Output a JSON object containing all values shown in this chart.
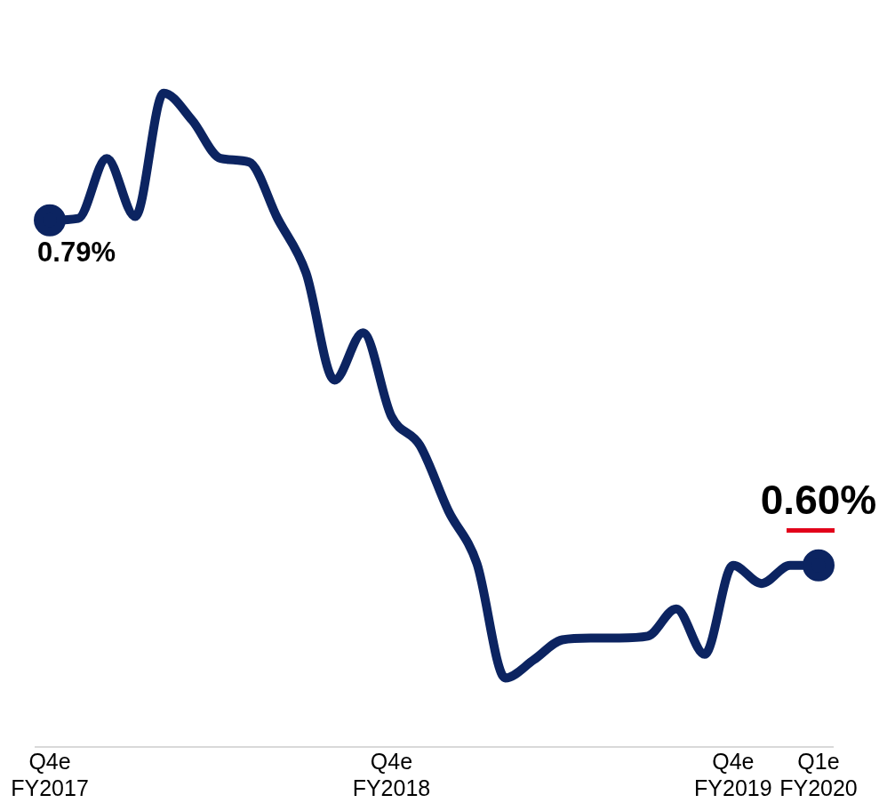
{
  "chart_data": {
    "type": "line",
    "categories": [
      "Q4e FY2017",
      null,
      null,
      null,
      null,
      null,
      null,
      null,
      null,
      null,
      null,
      null,
      "Q4e FY2018",
      null,
      null,
      null,
      null,
      null,
      null,
      null,
      null,
      null,
      null,
      null,
      "Q4e FY2019",
      null,
      null,
      "Q1e FY2020"
    ],
    "series": [
      {
        "color": "#0c2461",
        "values": [
          0.79,
          0.791,
          0.824,
          0.792,
          0.86,
          0.845,
          0.824,
          0.822,
          0.791,
          0.761,
          0.702,
          0.728,
          0.682,
          0.666,
          0.63,
          0.601,
          0.538,
          0.548,
          0.559,
          0.56,
          0.56,
          0.561,
          0.576,
          0.551,
          0.6,
          0.59,
          0.6,
          0.6
        ],
        "value_labels": [
          "0.79%",
          null,
          null,
          null,
          null,
          null,
          null,
          null,
          null,
          null,
          null,
          null,
          null,
          null,
          null,
          null,
          null,
          null,
          null,
          null,
          null,
          null,
          null,
          null,
          null,
          null,
          null,
          "0.60%"
        ]
      }
    ],
    "tick_labels": "x",
    "grid": false,
    "legend": false
  }
}
